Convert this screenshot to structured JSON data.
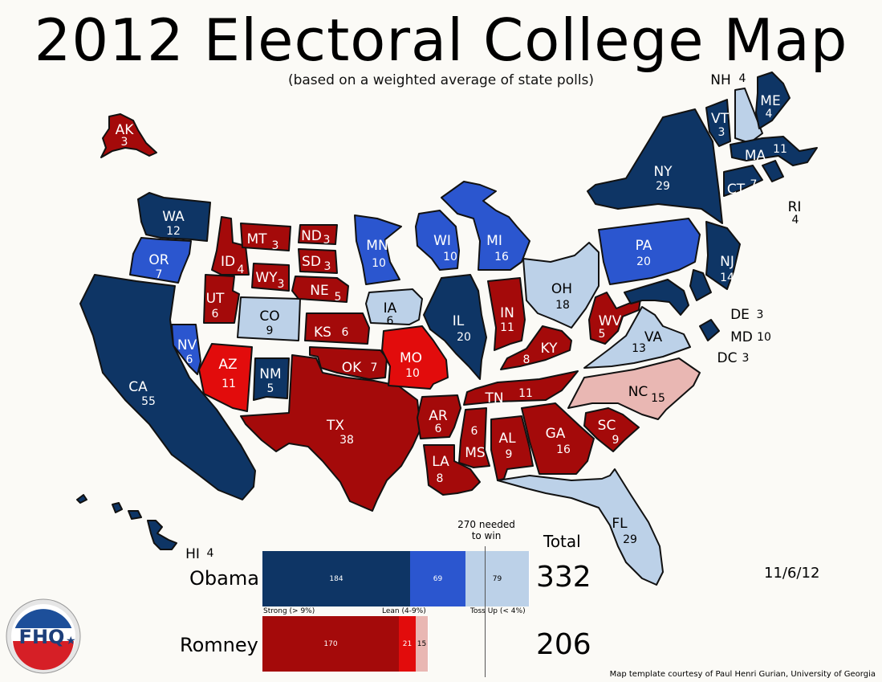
{
  "title": "2012 Electoral College Map",
  "subtitle": "(based on a weighted average of state polls)",
  "colors": {
    "strong_obama": "#0e3565",
    "lean_obama": "#2b56cf",
    "tossup_obama": "#bcd1e8",
    "strong_romney": "#a40a0a",
    "lean_romney": "#e20c0c",
    "tossup_romney": "#e9b7b3"
  },
  "states": [
    {
      "abbr": "AK",
      "ev": "3",
      "cat": "strong_romney"
    },
    {
      "abbr": "HI",
      "ev": "4",
      "cat": "strong_obama"
    },
    {
      "abbr": "WA",
      "ev": "12",
      "cat": "strong_obama"
    },
    {
      "abbr": "OR",
      "ev": "7",
      "cat": "lean_obama"
    },
    {
      "abbr": "CA",
      "ev": "55",
      "cat": "strong_obama"
    },
    {
      "abbr": "NV",
      "ev": "6",
      "cat": "lean_obama"
    },
    {
      "abbr": "ID",
      "ev": "4",
      "cat": "strong_romney"
    },
    {
      "abbr": "MT",
      "ev": "3",
      "cat": "strong_romney"
    },
    {
      "abbr": "WY",
      "ev": "3",
      "cat": "strong_romney"
    },
    {
      "abbr": "UT",
      "ev": "6",
      "cat": "strong_romney"
    },
    {
      "abbr": "AZ",
      "ev": "11",
      "cat": "lean_romney"
    },
    {
      "abbr": "CO",
      "ev": "9",
      "cat": "tossup_obama"
    },
    {
      "abbr": "NM",
      "ev": "5",
      "cat": "strong_obama"
    },
    {
      "abbr": "ND",
      "ev": "3",
      "cat": "strong_romney"
    },
    {
      "abbr": "SD",
      "ev": "3",
      "cat": "strong_romney"
    },
    {
      "abbr": "NE",
      "ev": "5",
      "cat": "strong_romney"
    },
    {
      "abbr": "KS",
      "ev": "6",
      "cat": "strong_romney"
    },
    {
      "abbr": "OK",
      "ev": "7",
      "cat": "strong_romney"
    },
    {
      "abbr": "TX",
      "ev": "38",
      "cat": "strong_romney"
    },
    {
      "abbr": "MN",
      "ev": "10",
      "cat": "lean_obama"
    },
    {
      "abbr": "IA",
      "ev": "6",
      "cat": "tossup_obama"
    },
    {
      "abbr": "MO",
      "ev": "10",
      "cat": "lean_romney"
    },
    {
      "abbr": "AR",
      "ev": "6",
      "cat": "strong_romney"
    },
    {
      "abbr": "LA",
      "ev": "8",
      "cat": "strong_romney"
    },
    {
      "abbr": "WI",
      "ev": "10",
      "cat": "lean_obama"
    },
    {
      "abbr": "IL",
      "ev": "20",
      "cat": "strong_obama"
    },
    {
      "abbr": "MI",
      "ev": "16",
      "cat": "lean_obama"
    },
    {
      "abbr": "IN",
      "ev": "11",
      "cat": "strong_romney"
    },
    {
      "abbr": "OH",
      "ev": "18",
      "cat": "tossup_obama"
    },
    {
      "abbr": "KY",
      "ev": "8",
      "cat": "strong_romney"
    },
    {
      "abbr": "TN",
      "ev": "11",
      "cat": "strong_romney"
    },
    {
      "abbr": "MS",
      "ev": "6",
      "cat": "strong_romney"
    },
    {
      "abbr": "AL",
      "ev": "9",
      "cat": "strong_romney"
    },
    {
      "abbr": "GA",
      "ev": "16",
      "cat": "strong_romney"
    },
    {
      "abbr": "FL",
      "ev": "29",
      "cat": "tossup_obama"
    },
    {
      "abbr": "SC",
      "ev": "9",
      "cat": "strong_romney"
    },
    {
      "abbr": "NC",
      "ev": "15",
      "cat": "tossup_romney"
    },
    {
      "abbr": "VA",
      "ev": "13",
      "cat": "tossup_obama"
    },
    {
      "abbr": "WV",
      "ev": "5",
      "cat": "strong_romney"
    },
    {
      "abbr": "PA",
      "ev": "20",
      "cat": "lean_obama"
    },
    {
      "abbr": "NY",
      "ev": "29",
      "cat": "strong_obama"
    },
    {
      "abbr": "NJ",
      "ev": "14",
      "cat": "strong_obama"
    },
    {
      "abbr": "DE",
      "ev": "3",
      "cat": "strong_obama"
    },
    {
      "abbr": "MD",
      "ev": "10",
      "cat": "strong_obama"
    },
    {
      "abbr": "DC",
      "ev": "3",
      "cat": "strong_obama"
    },
    {
      "abbr": "VT",
      "ev": "3",
      "cat": "strong_obama"
    },
    {
      "abbr": "NH",
      "ev": "4",
      "cat": "tossup_obama"
    },
    {
      "abbr": "ME",
      "ev": "4",
      "cat": "strong_obama"
    },
    {
      "abbr": "MA",
      "ev": "11",
      "cat": "strong_obama"
    },
    {
      "abbr": "CT",
      "ev": "7",
      "cat": "strong_obama"
    },
    {
      "abbr": "RI",
      "ev": "4",
      "cat": "strong_obama"
    }
  ],
  "tally": {
    "needed_label": "270 needed to win",
    "total_label": "Total",
    "obama": {
      "name": "Obama",
      "total": "332",
      "segments": [
        {
          "value": 184,
          "label": "184",
          "cat": "strong_obama"
        },
        {
          "value": 69,
          "label": "69",
          "cat": "lean_obama"
        },
        {
          "value": 79,
          "label": "79",
          "cat": "tossup_obama"
        }
      ]
    },
    "romney": {
      "name": "Romney",
      "total": "206",
      "segments": [
        {
          "value": 170,
          "label": "170",
          "cat": "strong_romney"
        },
        {
          "value": 21,
          "label": "21",
          "cat": "lean_romney"
        },
        {
          "value": 15,
          "label": "15",
          "cat": "tossup_romney"
        }
      ]
    },
    "legend": {
      "strong": "Strong (> 9%)",
      "lean": "Lean (4-9%)",
      "tossup": "Toss Up (< 4%)"
    }
  },
  "date": "11/6/12",
  "credit": "Map template courtesy of Paul Henri Gurian, University of Georgia",
  "logo_text": "FHQ"
}
